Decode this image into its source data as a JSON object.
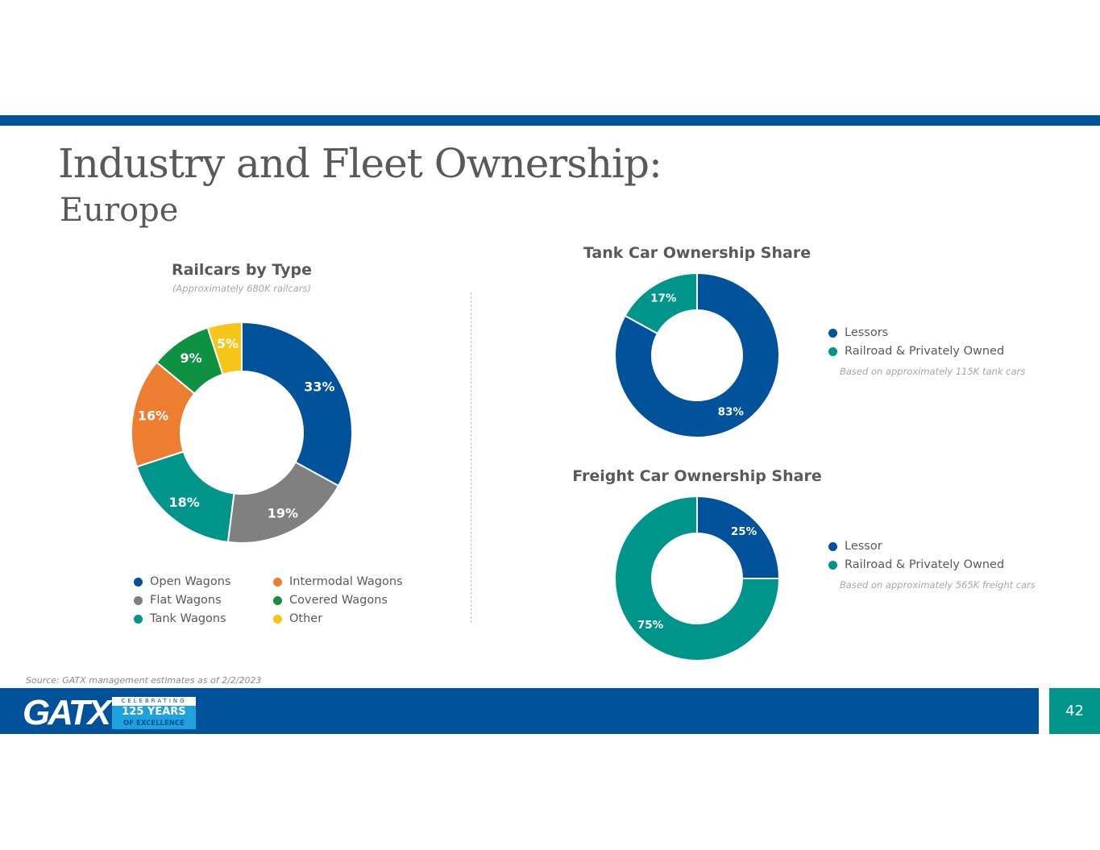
{
  "header": {
    "title": "Industry and Fleet Ownership:",
    "subtitle": "Europe"
  },
  "chart_data": [
    {
      "type": "pie",
      "id": "railcars",
      "title": "Railcars by Type",
      "note": "(Approximately 680K railcars)",
      "categories": [
        "Open Wagons",
        "Flat Wagons",
        "Tank Wagons",
        "Intermodal Wagons",
        "Covered Wagons",
        "Other"
      ],
      "values": [
        33,
        19,
        18,
        16,
        9,
        5
      ],
      "labels": [
        "33%",
        "19%",
        "18%",
        "16%",
        "9%",
        "5%"
      ],
      "colors": [
        "#00539b",
        "#808080",
        "#00958a",
        "#ed7d31",
        "#0f9142",
        "#f5c518"
      ]
    },
    {
      "type": "pie",
      "id": "tank",
      "title": "Tank Car Ownership Share",
      "note": "Based on approximately 115K tank cars",
      "categories": [
        "Lessors",
        "Railroad & Privately Owned"
      ],
      "values": [
        83,
        17
      ],
      "labels": [
        "83%",
        "17%"
      ],
      "colors": [
        "#00539b",
        "#00958a"
      ]
    },
    {
      "type": "pie",
      "id": "freight",
      "title": "Freight Car Ownership Share",
      "note": "Based on approximately 565K freight cars",
      "categories": [
        "Lessor",
        "Railroad & Privately Owned"
      ],
      "values": [
        25,
        75
      ],
      "labels": [
        "25%",
        "75%"
      ],
      "colors": [
        "#00539b",
        "#00958a"
      ]
    }
  ],
  "footer": {
    "source": "Source: GATX management estimates as of 2/2/2023",
    "logo_text": "GATX",
    "badge_top": "CELEBRATING",
    "badge_mid": "125 YEARS",
    "badge_bottom": "OF EXCELLENCE",
    "page_number": "42"
  }
}
